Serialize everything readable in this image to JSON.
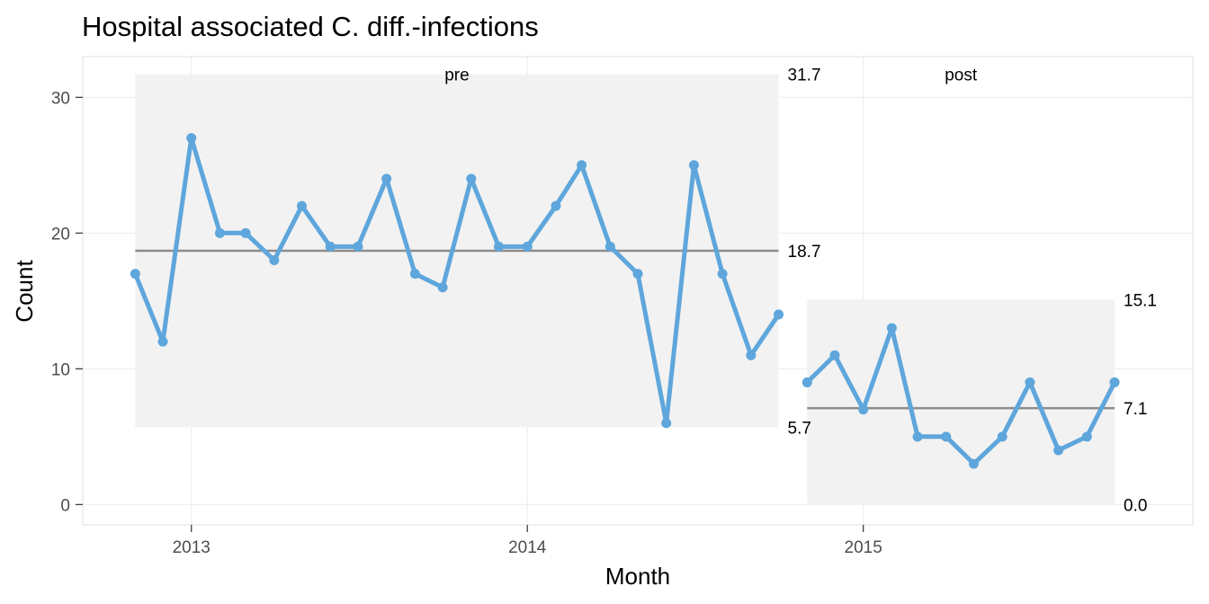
{
  "chart_data": {
    "type": "line",
    "title": "Hospital associated C. diff.-infections",
    "xlabel": "Month",
    "ylabel": "Count",
    "ylim": [
      -1.5,
      33
    ],
    "yticks": [
      0,
      10,
      20,
      30
    ],
    "xlim": [
      "2012-09-05",
      "2015-12-25"
    ],
    "xticks": [
      {
        "date": "2013-01-01",
        "label": "2013"
      },
      {
        "date": "2014-01-01",
        "label": "2014"
      },
      {
        "date": "2015-01-01",
        "label": "2015"
      }
    ],
    "grid": true,
    "colors": {
      "line": "#5ea6dc",
      "center": "#8c8c8c",
      "band": "#f2f2f2",
      "panel_border": "#ebebeb",
      "grid": "#ebebeb"
    },
    "phases": [
      {
        "name": "pre",
        "center": 18.7,
        "lcl": 5.7,
        "ucl": 31.7,
        "lcl_label": "5.7",
        "ucl_label": "31.7",
        "center_label": "18.7",
        "x": [
          "2012-11-01",
          "2012-12-01",
          "2013-01-01",
          "2013-02-01",
          "2013-03-01",
          "2013-04-01",
          "2013-05-01",
          "2013-06-01",
          "2013-07-01",
          "2013-08-01",
          "2013-09-01",
          "2013-10-01",
          "2013-11-01",
          "2013-12-01",
          "2014-01-01",
          "2014-02-01",
          "2014-03-01",
          "2014-04-01",
          "2014-05-01",
          "2014-06-01",
          "2014-07-01",
          "2014-08-01",
          "2014-09-01",
          "2014-10-01"
        ],
        "y": [
          17,
          12,
          27,
          20,
          20,
          18,
          22,
          19,
          19,
          24,
          17,
          16,
          24,
          19,
          19,
          22,
          25,
          19,
          17,
          6,
          25,
          17,
          11,
          14
        ]
      },
      {
        "name": "post",
        "center": 7.1,
        "lcl": 0.0,
        "ucl": 15.1,
        "lcl_label": "0.0",
        "ucl_label": "15.1",
        "center_label": "7.1",
        "x": [
          "2014-11-01",
          "2014-12-01",
          "2015-01-01",
          "2015-02-01",
          "2015-03-01",
          "2015-04-01",
          "2015-05-01",
          "2015-06-01",
          "2015-07-01",
          "2015-08-01",
          "2015-09-01",
          "2015-10-01"
        ],
        "y": [
          9,
          11,
          7,
          13,
          5,
          5,
          3,
          5,
          9,
          4,
          5,
          9
        ]
      }
    ]
  }
}
